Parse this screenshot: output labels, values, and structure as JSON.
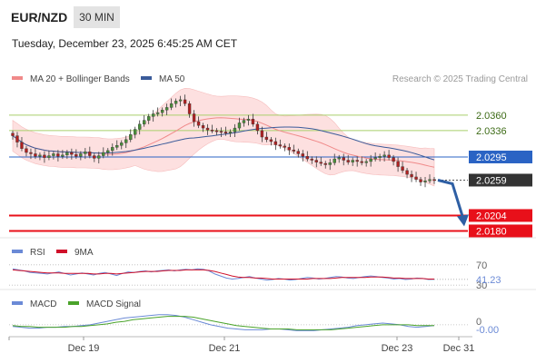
{
  "header": {
    "symbol": "EUR/NZD",
    "timeframe": "30 MIN",
    "datetime": "Tuesday, December 23, 2025 6:45:25 AM CET"
  },
  "legend": {
    "ma20_label": "MA 20 + Bollinger Bands",
    "ma50_label": "MA 50",
    "copyright": "Research © 2025 Trading Central"
  },
  "colors": {
    "ma20": "#f08a8a",
    "ma50": "#3b5b9a",
    "bollinger_fill": "#fde0e0",
    "resistance": "#a9cf6b",
    "pivot": "#2a63c4",
    "support": "#e8101a",
    "current_price_tag": "#333333",
    "forecast_arrow": "#2e5fa4",
    "candle": "#3a3a3a",
    "candle_up": "#4a8f3a",
    "candle_down": "#b02020",
    "rsi": "#6b8ad6",
    "rsi_ma": "#d0102a",
    "macd": "#6b8ad6",
    "macd_signal": "#4aa32a"
  },
  "chart_data": [
    {
      "type": "candlestick",
      "name": "price",
      "x_labels": [
        "Dec 19",
        "Dec 21",
        "Dec 23",
        "Dec 31"
      ],
      "ylim": [
        2.0175,
        2.0398
      ],
      "levels": [
        {
          "value": 2.036,
          "label": "2.0360",
          "kind": "resistance"
        },
        {
          "value": 2.0336,
          "label": "2.0336",
          "kind": "resistance"
        },
        {
          "value": 2.0295,
          "label": "2.0295",
          "kind": "pivot"
        },
        {
          "value": 2.0259,
          "label": "2.0259",
          "kind": "current"
        },
        {
          "value": 2.0204,
          "label": "2.0204",
          "kind": "support"
        },
        {
          "value": 2.018,
          "label": "2.0180",
          "kind": "support"
        }
      ],
      "forecast": {
        "from": 2.0259,
        "to": 2.019,
        "direction": "down"
      },
      "close_path": [
        2.0328,
        2.0318,
        2.0308,
        2.0302,
        2.03,
        2.0296,
        2.0298,
        2.0294,
        2.0297,
        2.03,
        2.0296,
        2.0298,
        2.0302,
        2.0299,
        2.0296,
        2.03,
        2.0303,
        2.0297,
        2.0293,
        2.0297,
        2.0302,
        2.0305,
        2.031,
        2.0313,
        2.0317,
        2.0322,
        2.033,
        2.0338,
        2.0346,
        2.0352,
        2.0358,
        2.0362,
        2.0364,
        2.0368,
        2.0372,
        2.0378,
        2.0382,
        2.0384,
        2.0378,
        2.0362,
        2.035,
        2.0344,
        2.034,
        2.0337,
        2.0336,
        2.0335,
        2.0334,
        2.0332,
        2.0334,
        2.034,
        2.0348,
        2.0352,
        2.0354,
        2.0346,
        2.0336,
        2.0326,
        2.0322,
        2.0319,
        2.0314,
        2.0312,
        2.031,
        2.0306,
        2.0304,
        2.03,
        2.0296,
        2.0292,
        2.029,
        2.0287,
        2.0285,
        2.0283,
        2.0286,
        2.0292,
        2.0294,
        2.029,
        2.0287,
        2.029,
        2.0288,
        2.0286,
        2.0288,
        2.0292,
        2.0294,
        2.0296,
        2.0298,
        2.0294,
        2.0288,
        2.028,
        2.0274,
        2.0268,
        2.0264,
        2.026,
        2.0256,
        2.0258,
        2.026,
        2.0259
      ]
    },
    {
      "type": "line",
      "name": "RSI",
      "legend": [
        "RSI",
        "9MA"
      ],
      "levels": [
        {
          "value": 70,
          "label": "70"
        },
        {
          "value": 30,
          "label": "30"
        }
      ],
      "current_value": 41.23,
      "current_label": "41.23",
      "ylim": [
        25,
        75
      ],
      "series_rsi": [
        62,
        60,
        58,
        55,
        54,
        53,
        52,
        54,
        56,
        53,
        50,
        52,
        54,
        52,
        50,
        53,
        55,
        52,
        49,
        53,
        56,
        55,
        57,
        58,
        56,
        58,
        59,
        60,
        58,
        60,
        61,
        60,
        62,
        61,
        58,
        52,
        48,
        44,
        42,
        43,
        45,
        47,
        44,
        42,
        40,
        41,
        43,
        42,
        40,
        41,
        43,
        45,
        44,
        42,
        43,
        45,
        47,
        46,
        44,
        43,
        45,
        47,
        48,
        47,
        45,
        44,
        42,
        43,
        41,
        42,
        44,
        43,
        41,
        41.23
      ],
      "series_ma": [
        60,
        59,
        58,
        57,
        56,
        55,
        54,
        54,
        54,
        53,
        53,
        53,
        53,
        53,
        52,
        52,
        53,
        53,
        52,
        53,
        54,
        55,
        56,
        57,
        57,
        57,
        58,
        59,
        59,
        59,
        60,
        60,
        60,
        60,
        59,
        57,
        54,
        51,
        48,
        46,
        45,
        45,
        44,
        44,
        43,
        42,
        42,
        42,
        42,
        42,
        42,
        42,
        43,
        43,
        43,
        43,
        44,
        45,
        45,
        45,
        45,
        45,
        46,
        46,
        46,
        45,
        44,
        44,
        43,
        43,
        43,
        43,
        42,
        42
      ]
    },
    {
      "type": "line",
      "name": "MACD",
      "legend": [
        "MACD",
        "MACD Signal"
      ],
      "current_value": -0.0,
      "current_label": "-0.00",
      "zero_label": "0",
      "ylim": [
        -0.0012,
        0.0016
      ],
      "series_macd": [
        -0.0002,
        -0.0003,
        -0.0004,
        -0.0004,
        -0.0003,
        -0.0003,
        -0.0002,
        -0.0002,
        -0.0001,
        0.0,
        0.0002,
        0.0004,
        0.0006,
        0.0008,
        0.0009,
        0.001,
        0.0011,
        0.0012,
        0.0012,
        0.0011,
        0.0009,
        0.0006,
        0.0003,
        0.0,
        -0.0002,
        -0.0004,
        -0.0005,
        -0.0006,
        -0.0006,
        -0.0006,
        -0.0005,
        -0.0005,
        -0.0006,
        -0.0007,
        -0.0007,
        -0.0007,
        -0.0006,
        -0.0005,
        -0.0004,
        -0.0003,
        -0.0001,
        0.0,
        0.0001,
        0.0002,
        0.0001,
        0.0,
        -0.0002,
        -0.0003,
        -0.0002,
        -0.0001
      ],
      "series_signal": [
        -0.0001,
        -0.0002,
        -0.0002,
        -0.0003,
        -0.0003,
        -0.0003,
        -0.0003,
        -0.0002,
        -0.0002,
        -0.0001,
        0.0,
        0.0001,
        0.0003,
        0.0004,
        0.0006,
        0.0007,
        0.0008,
        0.0009,
        0.001,
        0.001,
        0.001,
        0.0009,
        0.0007,
        0.0005,
        0.0003,
        0.0001,
        -0.0001,
        -0.0002,
        -0.0003,
        -0.0004,
        -0.0005,
        -0.0005,
        -0.0005,
        -0.0006,
        -0.0006,
        -0.0006,
        -0.0006,
        -0.0006,
        -0.0005,
        -0.0004,
        -0.0003,
        -0.0002,
        -0.0001,
        0.0,
        0.0,
        0.0,
        0.0,
        -0.0001,
        -0.0001,
        -0.0001
      ]
    }
  ]
}
